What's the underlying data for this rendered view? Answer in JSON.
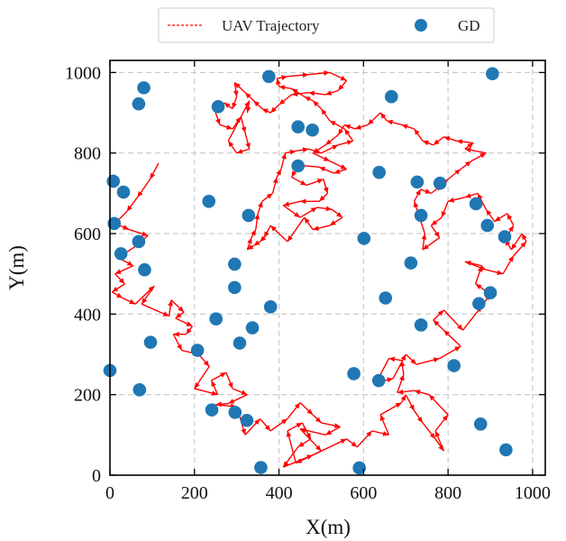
{
  "chart_data": {
    "type": "scatter",
    "xlabel": "X(m)",
    "ylabel": "Y(m)",
    "xlim": [
      0,
      1030
    ],
    "ylim": [
      0,
      1030
    ],
    "xticks": [
      0,
      200,
      400,
      600,
      800,
      1000
    ],
    "yticks": [
      0,
      200,
      400,
      600,
      800,
      1000
    ],
    "grid": true,
    "legend_position": "top-center",
    "legend": [
      {
        "label": "UAV Trajectory",
        "marker": "dashed-line",
        "color": "#ff0000"
      },
      {
        "label": "GD",
        "marker": "circle",
        "color": "#1f77b4"
      }
    ],
    "series": [
      {
        "name": "GD",
        "kind": "scatter",
        "color": "#1f77b4",
        "points": [
          [
            80,
            962
          ],
          [
            68,
            922
          ],
          [
            376,
            990
          ],
          [
            905,
            997
          ],
          [
            256,
            915
          ],
          [
            666,
            940
          ],
          [
            445,
            865
          ],
          [
            479,
            857
          ],
          [
            445,
            768
          ],
          [
            637,
            752
          ],
          [
            8,
            730
          ],
          [
            32,
            703
          ],
          [
            234,
            680
          ],
          [
            328,
            645
          ],
          [
            727,
            728
          ],
          [
            781,
            725
          ],
          [
            866,
            674
          ],
          [
            893,
            620
          ],
          [
            934,
            592
          ],
          [
            10,
            625
          ],
          [
            68,
            580
          ],
          [
            736,
            645
          ],
          [
            601,
            588
          ],
          [
            26,
            550
          ],
          [
            295,
            524
          ],
          [
            712,
            527
          ],
          [
            82,
            510
          ],
          [
            295,
            466
          ],
          [
            652,
            440
          ],
          [
            900,
            453
          ],
          [
            873,
            426
          ],
          [
            380,
            418
          ],
          [
            251,
            388
          ],
          [
            337,
            366
          ],
          [
            736,
            373
          ],
          [
            96,
            330
          ],
          [
            307,
            328
          ],
          [
            207,
            310
          ],
          [
            0,
            260
          ],
          [
            577,
            252
          ],
          [
            814,
            272
          ],
          [
            636,
            235
          ],
          [
            70,
            212
          ],
          [
            241,
            162
          ],
          [
            296,
            156
          ],
          [
            324,
            136
          ],
          [
            877,
            127
          ],
          [
            937,
            63
          ],
          [
            357,
            19
          ],
          [
            590,
            18
          ]
        ]
      },
      {
        "name": "UAV Trajectory",
        "kind": "line",
        "color": "#ff0000",
        "points": [
          [
            115,
            775
          ],
          [
            95,
            735
          ],
          [
            65,
            690
          ],
          [
            40,
            655
          ],
          [
            12,
            625
          ],
          [
            45,
            610
          ],
          [
            90,
            595
          ],
          [
            60,
            568
          ],
          [
            20,
            540
          ],
          [
            55,
            520
          ],
          [
            12,
            500
          ],
          [
            35,
            475
          ],
          [
            5,
            455
          ],
          [
            30,
            440
          ],
          [
            60,
            425
          ],
          [
            105,
            470
          ],
          [
            75,
            425
          ],
          [
            140,
            395
          ],
          [
            145,
            435
          ],
          [
            175,
            405
          ],
          [
            155,
            390
          ],
          [
            195,
            370
          ],
          [
            180,
            350
          ],
          [
            150,
            350
          ],
          [
            170,
            310
          ],
          [
            210,
            300
          ],
          [
            235,
            270
          ],
          [
            200,
            215
          ],
          [
            255,
            200
          ],
          [
            240,
            235
          ],
          [
            275,
            255
          ],
          [
            290,
            215
          ],
          [
            325,
            200
          ],
          [
            280,
            178
          ],
          [
            250,
            175
          ],
          [
            300,
            170
          ],
          [
            320,
            100
          ],
          [
            355,
            140
          ],
          [
            380,
            110
          ],
          [
            420,
            140
          ],
          [
            450,
            180
          ],
          [
            480,
            150
          ],
          [
            500,
            130
          ],
          [
            545,
            120
          ],
          [
            510,
            100
          ],
          [
            450,
            115
          ],
          [
            500,
            60
          ],
          [
            440,
            30
          ],
          [
            420,
            110
          ],
          [
            455,
            130
          ],
          [
            475,
            90
          ],
          [
            445,
            70
          ],
          [
            410,
            20
          ],
          [
            480,
            50
          ],
          [
            560,
            90
          ],
          [
            585,
            70
          ],
          [
            620,
            110
          ],
          [
            660,
            100
          ],
          [
            640,
            150
          ],
          [
            690,
            180
          ],
          [
            700,
            200
          ],
          [
            720,
            160
          ],
          [
            740,
            130
          ],
          [
            770,
            90
          ],
          [
            790,
            60
          ],
          [
            770,
            110
          ],
          [
            800,
            150
          ],
          [
            755,
            200
          ],
          [
            720,
            210
          ],
          [
            680,
            205
          ],
          [
            695,
            250
          ],
          [
            690,
            285
          ],
          [
            660,
            290
          ],
          [
            630,
            230
          ],
          [
            670,
            240
          ],
          [
            700,
            300
          ],
          [
            725,
            275
          ],
          [
            780,
            290
          ],
          [
            830,
            320
          ],
          [
            790,
            360
          ],
          [
            765,
            385
          ],
          [
            790,
            410
          ],
          [
            835,
            360
          ],
          [
            880,
            420
          ],
          [
            900,
            450
          ],
          [
            865,
            475
          ],
          [
            880,
            520
          ],
          [
            840,
            530
          ],
          [
            890,
            510
          ],
          [
            930,
            500
          ],
          [
            955,
            545
          ],
          [
            985,
            580
          ],
          [
            975,
            600
          ],
          [
            950,
            560
          ],
          [
            935,
            585
          ],
          [
            955,
            620
          ],
          [
            940,
            650
          ],
          [
            910,
            630
          ],
          [
            890,
            660
          ],
          [
            870,
            700
          ],
          [
            840,
            690
          ],
          [
            800,
            680
          ],
          [
            785,
            640
          ],
          [
            760,
            620
          ],
          [
            780,
            590
          ],
          [
            740,
            560
          ],
          [
            745,
            600
          ],
          [
            720,
            680
          ],
          [
            735,
            710
          ],
          [
            760,
            700
          ],
          [
            785,
            720
          ],
          [
            800,
            735
          ],
          [
            830,
            760
          ],
          [
            855,
            780
          ],
          [
            890,
            800
          ],
          [
            840,
            810
          ],
          [
            860,
            825
          ],
          [
            820,
            830
          ],
          [
            790,
            840
          ],
          [
            765,
            820
          ],
          [
            740,
            830
          ],
          [
            720,
            860
          ],
          [
            690,
            870
          ],
          [
            655,
            880
          ],
          [
            640,
            900
          ],
          [
            610,
            870
          ],
          [
            580,
            860
          ],
          [
            555,
            870
          ],
          [
            540,
            845
          ],
          [
            510,
            820
          ],
          [
            480,
            800
          ],
          [
            520,
            780
          ],
          [
            560,
            760
          ],
          [
            530,
            750
          ],
          [
            495,
            765
          ],
          [
            445,
            770
          ],
          [
            430,
            740
          ],
          [
            465,
            720
          ],
          [
            505,
            735
          ],
          [
            515,
            700
          ],
          [
            495,
            680
          ],
          [
            450,
            680
          ],
          [
            410,
            670
          ],
          [
            450,
            640
          ],
          [
            490,
            665
          ],
          [
            525,
            660
          ],
          [
            550,
            640
          ],
          [
            520,
            620
          ],
          [
            480,
            610
          ],
          [
            460,
            640
          ],
          [
            420,
            580
          ],
          [
            380,
            620
          ],
          [
            365,
            590
          ],
          [
            355,
            580
          ],
          [
            340,
            570
          ],
          [
            325,
            560
          ],
          [
            335,
            590
          ],
          [
            345,
            610
          ],
          [
            350,
            650
          ],
          [
            360,
            680
          ],
          [
            385,
            700
          ],
          [
            395,
            740
          ],
          [
            405,
            760
          ],
          [
            415,
            800
          ],
          [
            440,
            805
          ],
          [
            470,
            810
          ],
          [
            500,
            800
          ],
          [
            540,
            820
          ],
          [
            575,
            830
          ],
          [
            555,
            860
          ],
          [
            520,
            880
          ],
          [
            500,
            910
          ],
          [
            480,
            930
          ],
          [
            460,
            940
          ],
          [
            430,
            960
          ],
          [
            400,
            965
          ],
          [
            395,
            985
          ],
          [
            420,
            990
          ],
          [
            470,
            995
          ],
          [
            520,
            1000
          ],
          [
            560,
            980
          ],
          [
            540,
            955
          ],
          [
            510,
            945
          ],
          [
            470,
            950
          ],
          [
            430,
            945
          ],
          [
            400,
            920
          ],
          [
            380,
            900
          ],
          [
            360,
            910
          ],
          [
            340,
            930
          ],
          [
            320,
            950
          ],
          [
            295,
            975
          ],
          [
            300,
            940
          ],
          [
            290,
            910
          ],
          [
            270,
            925
          ],
          [
            250,
            900
          ],
          [
            260,
            870
          ],
          [
            290,
            860
          ],
          [
            310,
            890
          ],
          [
            320,
            850
          ],
          [
            330,
            810
          ],
          [
            300,
            800
          ],
          [
            280,
            830
          ],
          [
            330,
            930
          ],
          [
            325,
            900
          ]
        ]
      }
    ]
  }
}
